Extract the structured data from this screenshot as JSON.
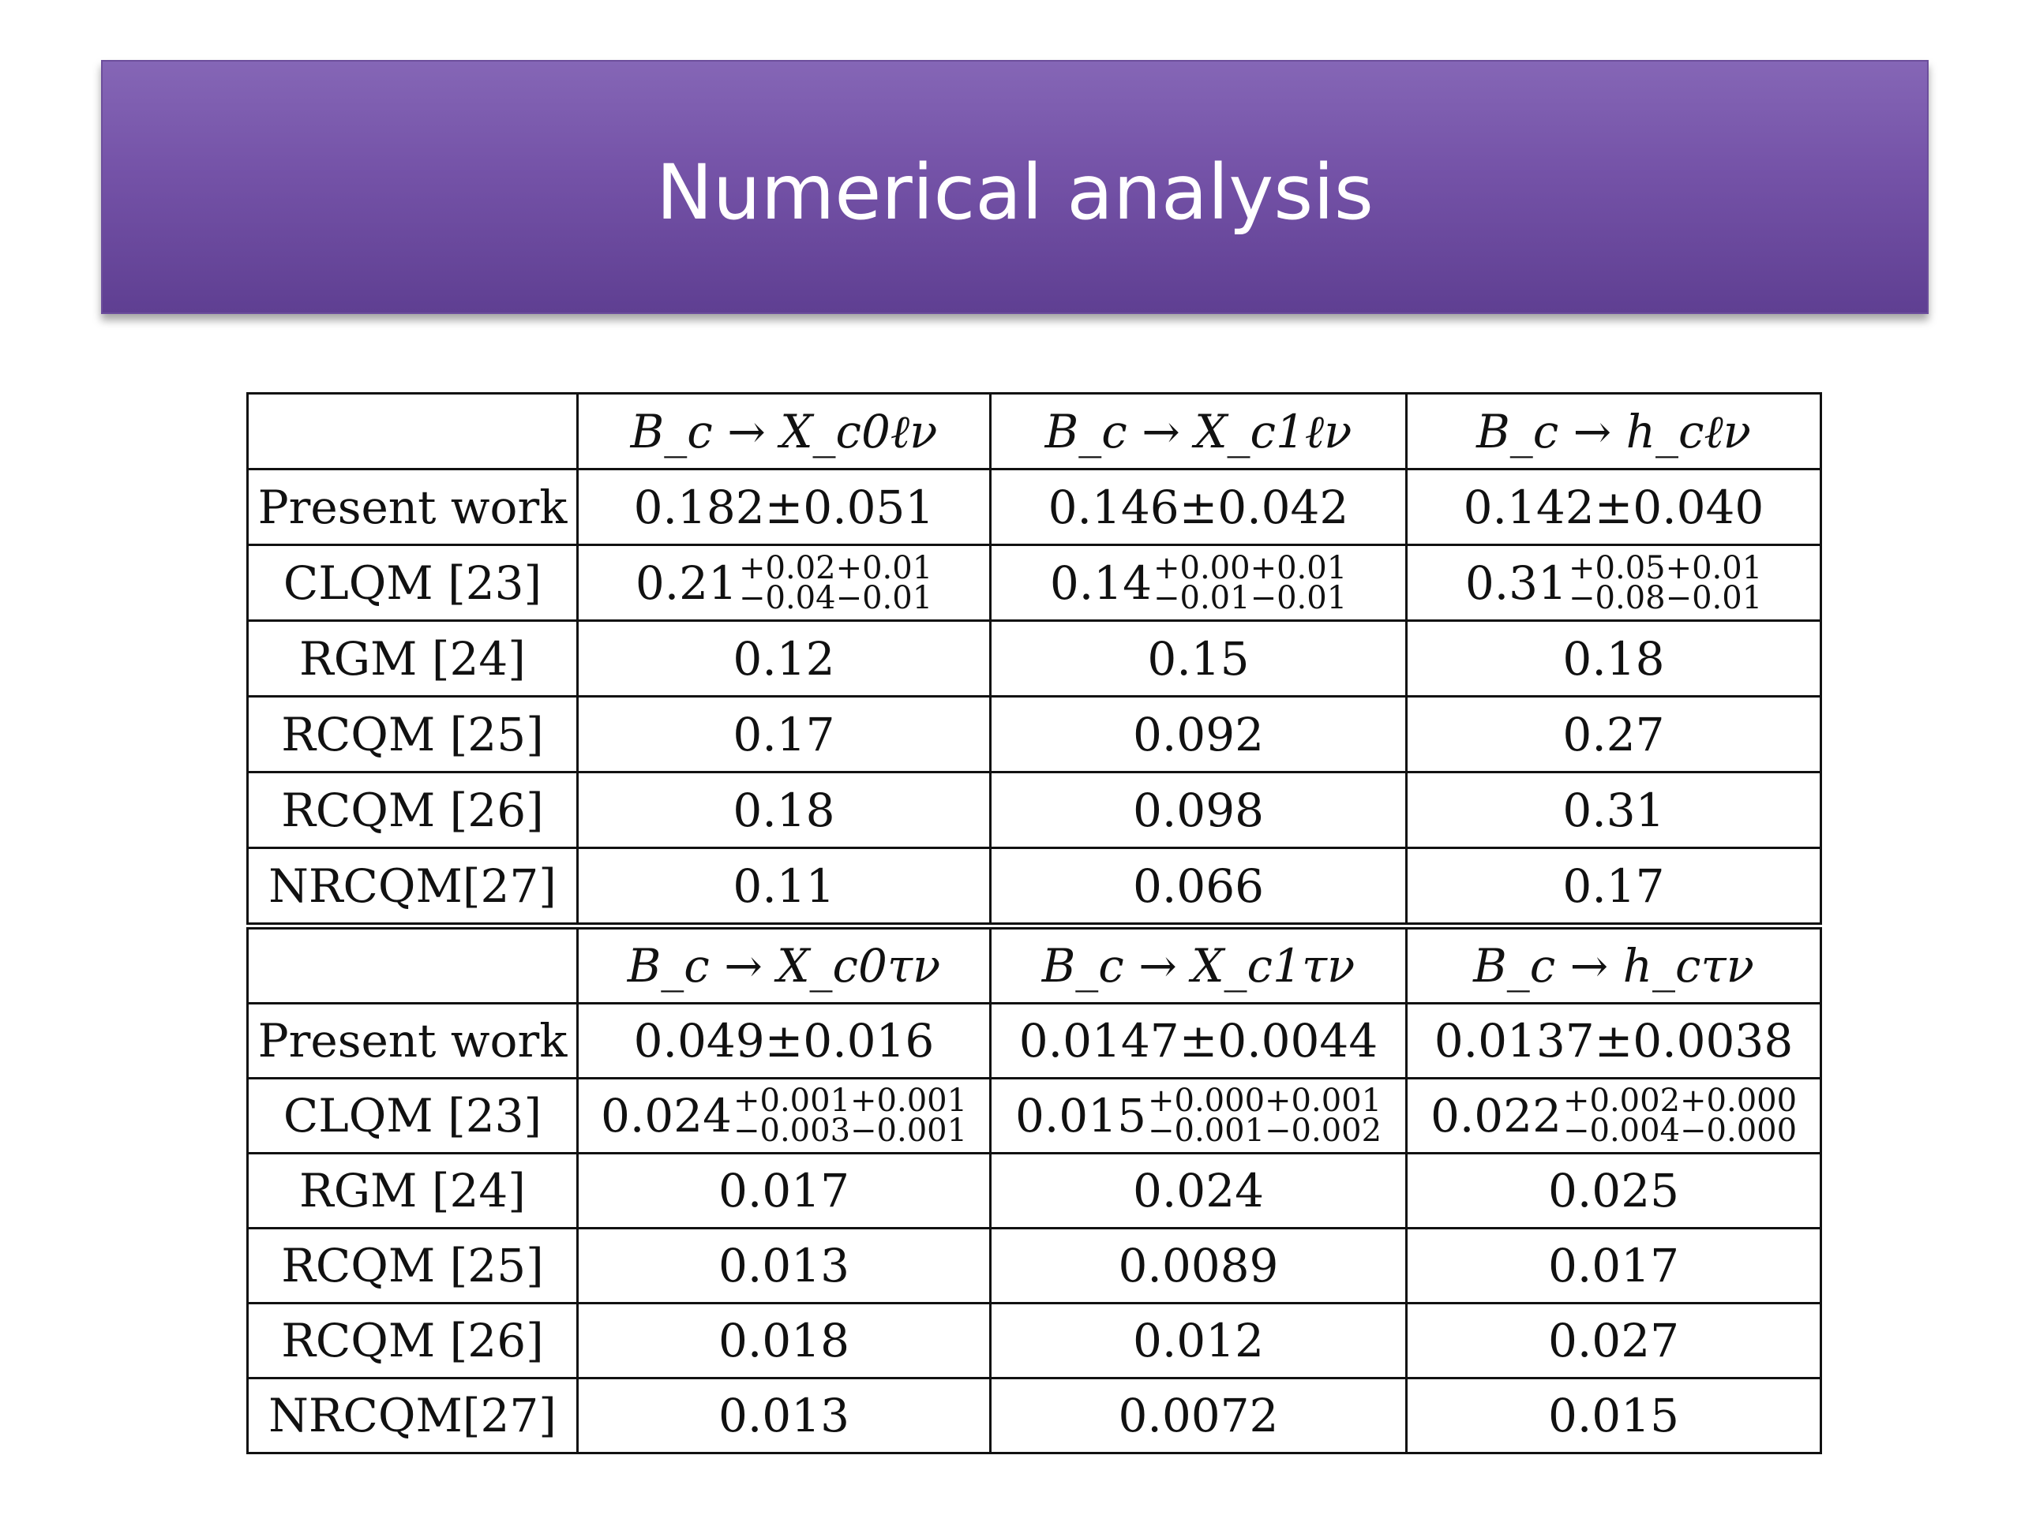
{
  "slide": {
    "title": "Numerical analysis"
  },
  "table1": {
    "headers": [
      "B_c → X_c0ℓν",
      "B_c → X_c1ℓν",
      "B_c → h_cℓν"
    ],
    "rows": [
      {
        "label": "Present work",
        "cells": [
          {
            "text": "0.182±0.051"
          },
          {
            "text": "0.146±0.042"
          },
          {
            "text": "0.142±0.040"
          }
        ]
      },
      {
        "label": "CLQM [23]",
        "cells": [
          {
            "central": "0.21",
            "upper": "+0.02+0.01",
            "lower": "−0.04−0.01"
          },
          {
            "central": "0.14",
            "upper": "+0.00+0.01",
            "lower": "−0.01−0.01"
          },
          {
            "central": "0.31",
            "upper": "+0.05+0.01",
            "lower": "−0.08−0.01"
          }
        ]
      },
      {
        "label": "RGM [24]",
        "cells": [
          {
            "text": "0.12"
          },
          {
            "text": "0.15"
          },
          {
            "text": "0.18"
          }
        ]
      },
      {
        "label": "RCQM [25]",
        "cells": [
          {
            "text": "0.17"
          },
          {
            "text": "0.092"
          },
          {
            "text": "0.27"
          }
        ]
      },
      {
        "label": "RCQM [26]",
        "cells": [
          {
            "text": "0.18"
          },
          {
            "text": "0.098"
          },
          {
            "text": "0.31"
          }
        ]
      },
      {
        "label": "NRCQM[27]",
        "cells": [
          {
            "text": "0.11"
          },
          {
            "text": "0.066"
          },
          {
            "text": "0.17"
          }
        ]
      }
    ]
  },
  "table2": {
    "headers": [
      "B_c → X_c0τν",
      "B_c → X_c1τν",
      "B_c → h_cτν"
    ],
    "rows": [
      {
        "label": "Present work",
        "cells": [
          {
            "text": "0.049±0.016"
          },
          {
            "text": "0.0147±0.0044"
          },
          {
            "text": "0.0137±0.0038"
          }
        ]
      },
      {
        "label": "CLQM [23]",
        "cells": [
          {
            "central": "0.024",
            "upper": "+0.001+0.001",
            "lower": "−0.003−0.001"
          },
          {
            "central": "0.015",
            "upper": "+0.000+0.001",
            "lower": "−0.001−0.002"
          },
          {
            "central": "0.022",
            "upper": "+0.002+0.000",
            "lower": "−0.004−0.000"
          }
        ]
      },
      {
        "label": "RGM [24]",
        "cells": [
          {
            "text": "0.017"
          },
          {
            "text": "0.024"
          },
          {
            "text": "0.025"
          }
        ]
      },
      {
        "label": "RCQM [25]",
        "cells": [
          {
            "text": "0.013"
          },
          {
            "text": "0.0089"
          },
          {
            "text": "0.017"
          }
        ]
      },
      {
        "label": "RCQM [26]",
        "cells": [
          {
            "text": "0.018"
          },
          {
            "text": "0.012"
          },
          {
            "text": "0.027"
          }
        ]
      },
      {
        "label": "NRCQM[27]",
        "cells": [
          {
            "text": "0.013"
          },
          {
            "text": "0.0072"
          },
          {
            "text": "0.015"
          }
        ]
      }
    ]
  }
}
